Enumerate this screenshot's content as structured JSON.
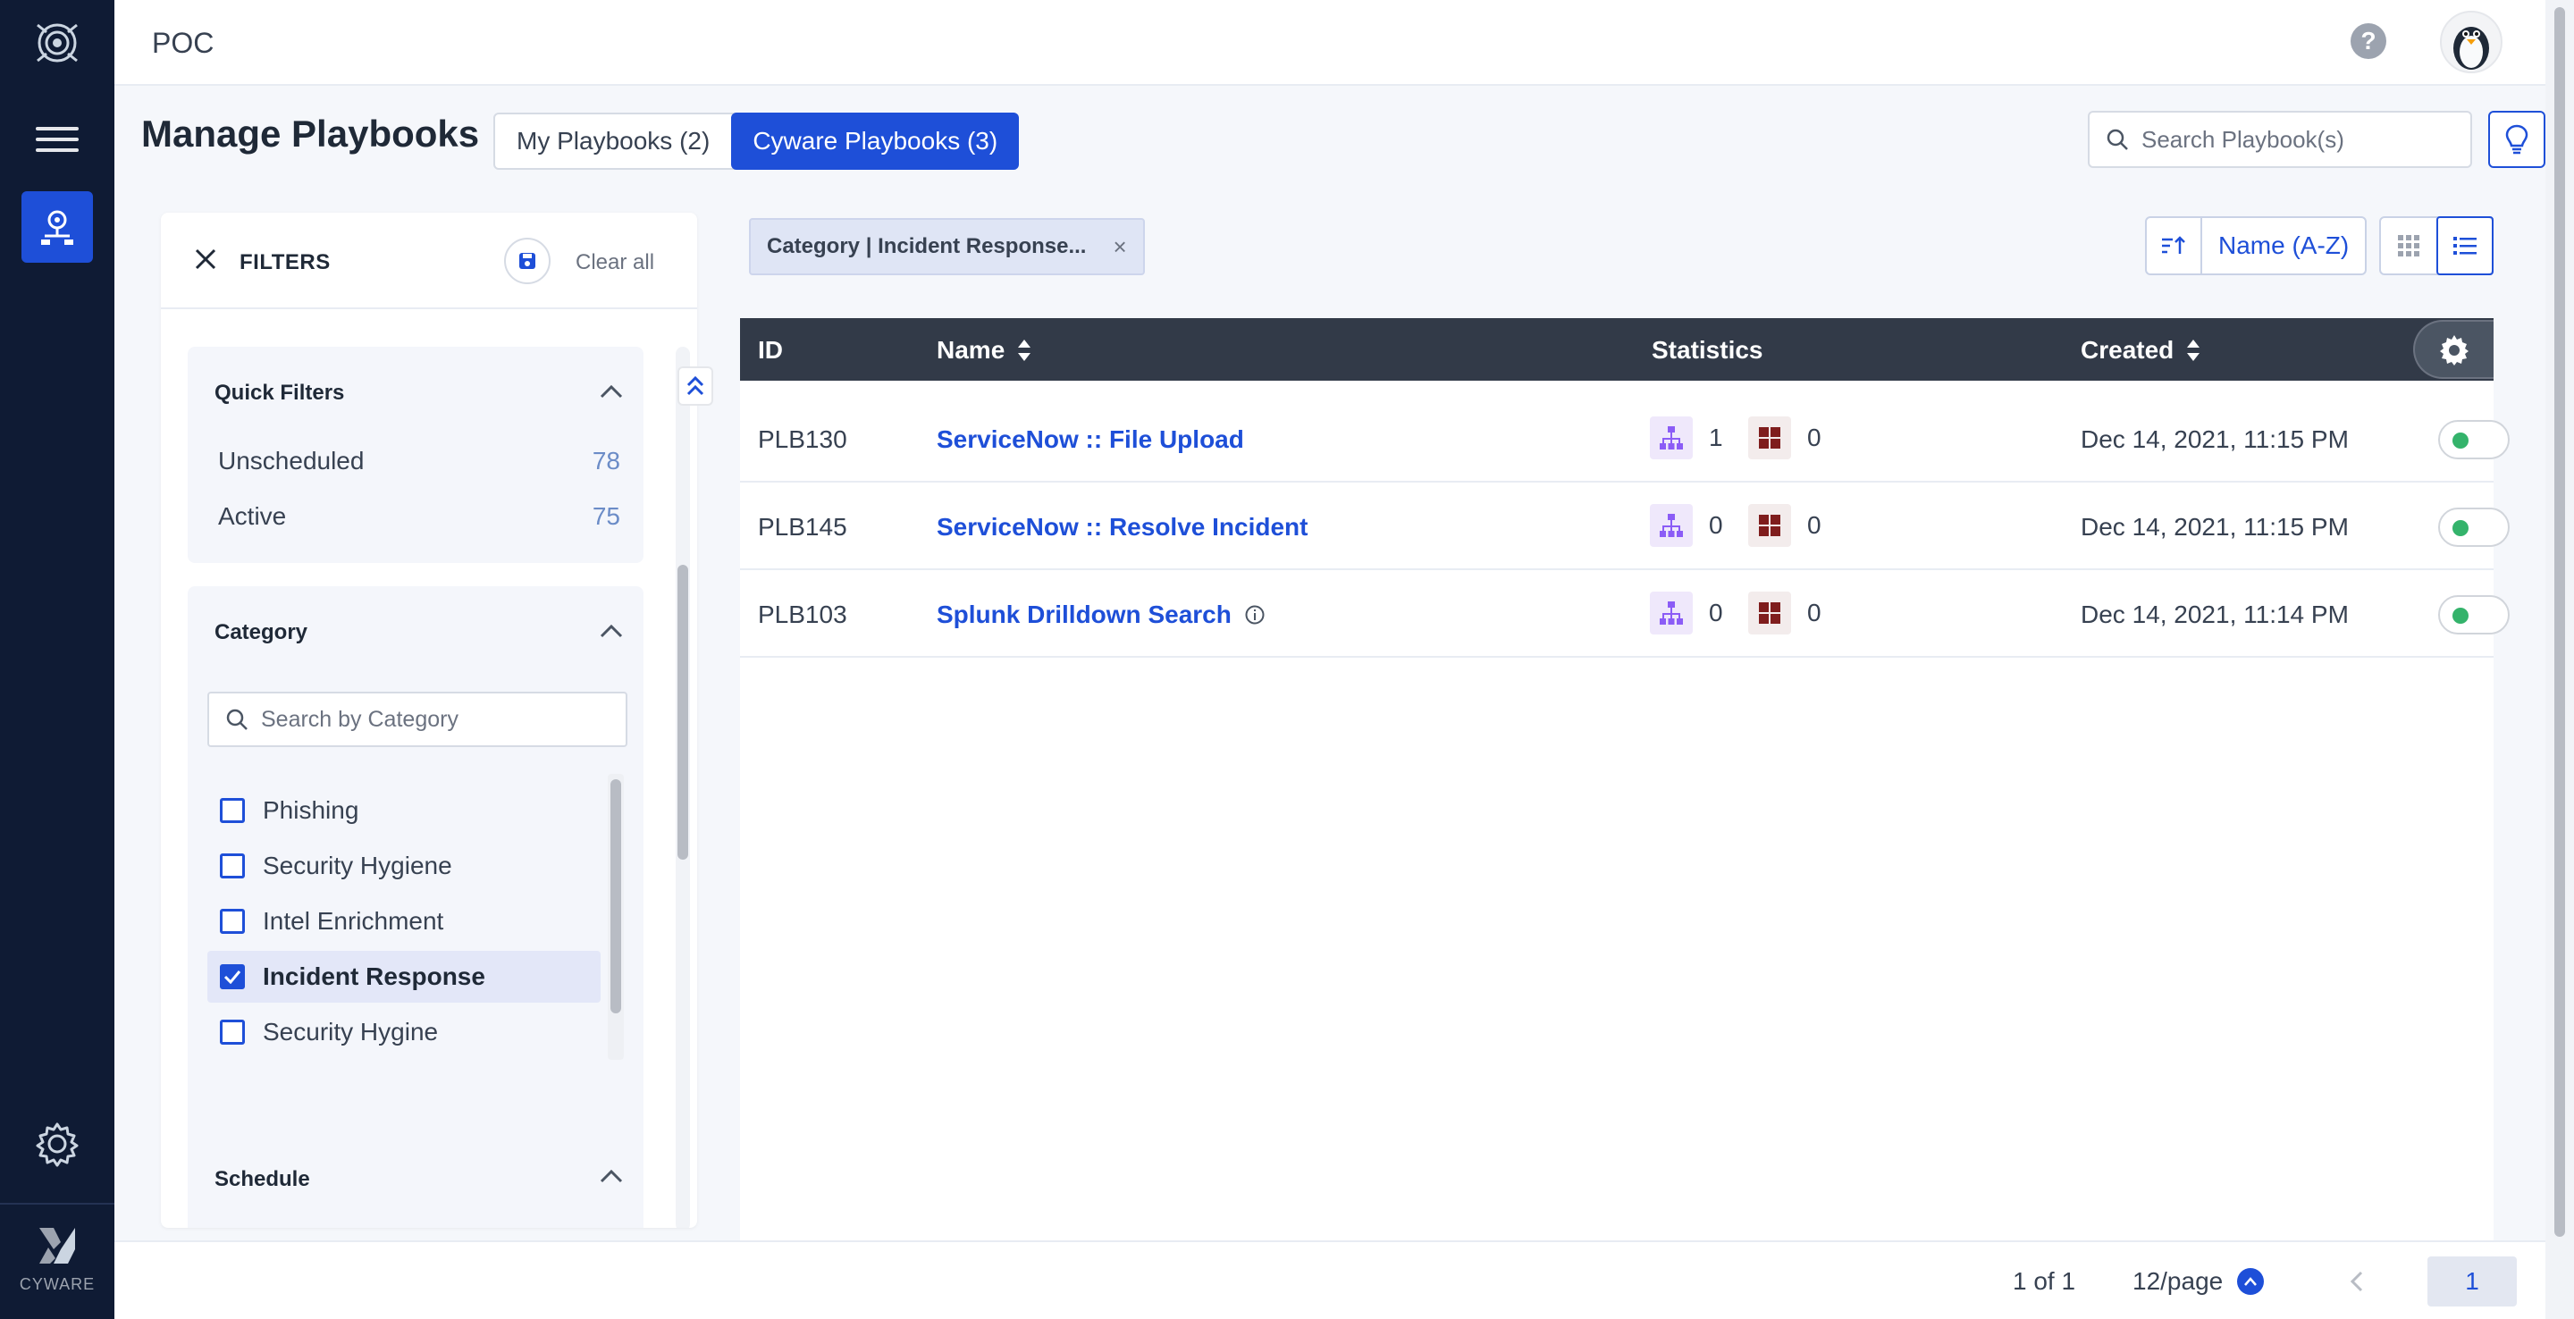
{
  "topbar": {
    "app_title": "POC",
    "help_label": "?"
  },
  "brand": {
    "name": "CYWARE"
  },
  "page": {
    "title": "Manage Playbooks"
  },
  "tabs": [
    {
      "label": "My Playbooks",
      "count": "(2)"
    },
    {
      "label": "Cyware Playbooks",
      "count": "(3)"
    }
  ],
  "search": {
    "placeholder": "Search Playbook(s)"
  },
  "filters": {
    "label": "FILTERS",
    "clear_label": "Clear all",
    "quick": {
      "title": "Quick Filters",
      "items": [
        {
          "label": "Unscheduled",
          "count": "78"
        },
        {
          "label": "Active",
          "count": "75"
        }
      ]
    },
    "category": {
      "title": "Category",
      "search_placeholder": "Search by Category",
      "items": [
        {
          "label": "Phishing",
          "checked": false
        },
        {
          "label": "Security Hygiene",
          "checked": false
        },
        {
          "label": "Intel Enrichment",
          "checked": false
        },
        {
          "label": "Incident Response",
          "checked": true
        },
        {
          "label": "Security Hygine",
          "checked": false
        }
      ]
    },
    "schedule": {
      "title": "Schedule"
    }
  },
  "chip": {
    "label": "Category | Incident Response...",
    "close": "×"
  },
  "sort": {
    "field": "Name (A-Z)"
  },
  "table": {
    "headers": {
      "id": "ID",
      "name": "Name",
      "statistics": "Statistics",
      "created": "Created"
    },
    "rows": [
      {
        "id": "PLB130",
        "name": "ServiceNow :: File Upload",
        "stat_a": "1",
        "stat_b": "0",
        "created": "Dec 14, 2021, 11:15 PM",
        "info": false
      },
      {
        "id": "PLB145",
        "name": "ServiceNow :: Resolve Incident",
        "stat_a": "0",
        "stat_b": "0",
        "created": "Dec 14, 2021, 11:15 PM",
        "info": false
      },
      {
        "id": "PLB103",
        "name": "Splunk Drilldown Search",
        "stat_a": "0",
        "stat_b": "0",
        "created": "Dec 14, 2021, 11:14 PM",
        "info": true
      }
    ]
  },
  "footer": {
    "range": "1 of 1",
    "per_page": "12/page",
    "current_page": "1"
  },
  "colors": {
    "primary": "#1e4fd8",
    "nav_bg": "#0f1b34",
    "header_bg": "#323a48",
    "active_green": "#34b36b"
  }
}
